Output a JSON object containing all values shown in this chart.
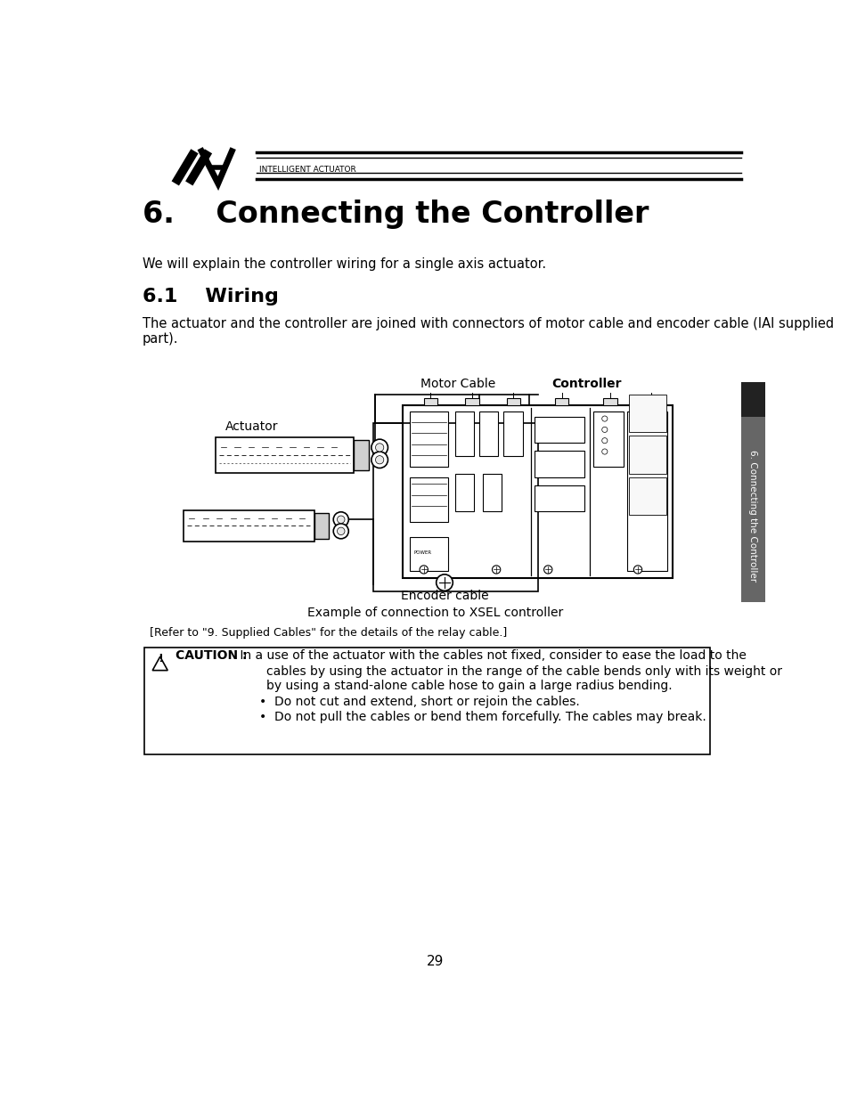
{
  "title": "6.    Connecting the Controller",
  "subtitle": "We will explain the controller wiring for a single axis actuator.",
  "section_title": "6.1    Wiring",
  "body_line1": "The actuator and the controller are joined with connectors of motor cable and encoder cable (IAI supplied",
  "body_line2": "part).",
  "label_motor_cable": "Motor Cable",
  "label_controller": "Controller",
  "label_actuator": "Actuator",
  "label_encoder": "Encoder cable",
  "caption": "Example of connection to XSEL controller",
  "refer_text": "[Refer to \"9. Supplied Cables\" for the details of the relay cable.]",
  "caution_title": "CAUTION :",
  "caution_line1": " In a use of the actuator with the cables not fixed, consider to ease the load to the",
  "caution_line2": "cables by using the actuator in the range of the cable bends only with its weight or",
  "caution_line3": "by using a stand-alone cable hose to gain a large radius bending.",
  "bullet1": "Do not cut and extend, short or rejoin the cables.",
  "bullet2": "Do not pull the cables or bend them forcefully. The cables may break.",
  "side_tab_text": "6. Connecting the Controller",
  "page_number": "29",
  "bg_color": "#ffffff",
  "text_color": "#000000",
  "logo_text": "INTELLIGENT ACTUATOR"
}
